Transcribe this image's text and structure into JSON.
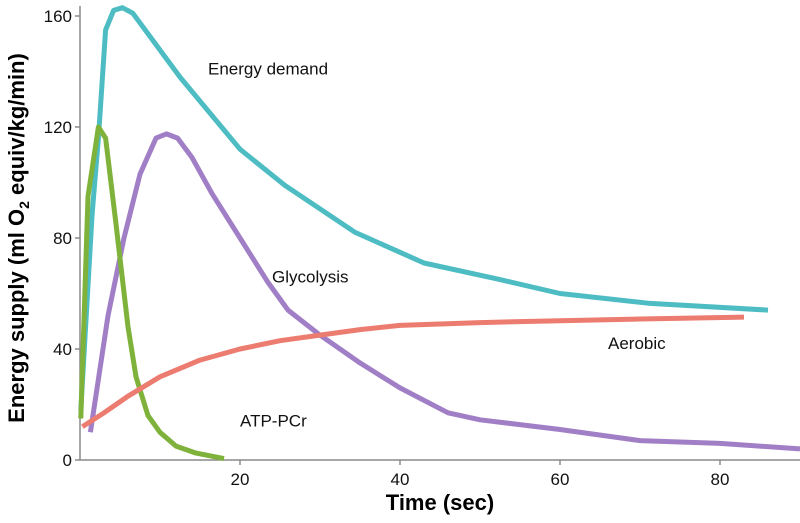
{
  "chart_data": {
    "type": "line",
    "title": "",
    "xlabel": "Time (sec)",
    "ylabel": "Energy supply (ml O2 equiv/kg/min)",
    "ylabel_parts": {
      "before": "Energy supply (ml O",
      "subscript": "2",
      "after": " equiv/kg/min)"
    },
    "xlim": [
      0,
      90
    ],
    "ylim": [
      0,
      165
    ],
    "xticks": [
      20,
      40,
      60,
      80
    ],
    "yticks": [
      0,
      40,
      80,
      120,
      160
    ],
    "grid": false,
    "legend": "none (inline labels)",
    "series": [
      {
        "name": "Energy demand",
        "color": "#4dbdc3",
        "label_at": [
          16,
          139
        ],
        "points": [
          [
            0.1,
            18
          ],
          [
            1.5,
            88
          ],
          [
            2.3,
            116
          ],
          [
            3.2,
            155
          ],
          [
            4.2,
            162
          ],
          [
            5.3,
            163
          ],
          [
            6.6,
            161
          ],
          [
            12.5,
            138
          ],
          [
            20,
            112
          ],
          [
            25.6,
            99
          ],
          [
            34.4,
            82
          ],
          [
            43,
            71
          ],
          [
            52.5,
            65
          ],
          [
            60,
            60
          ],
          [
            71,
            56.5
          ],
          [
            86,
            54
          ]
        ]
      },
      {
        "name": "Glycolysis",
        "color": "#a17fc6",
        "label_at": [
          24,
          64
        ],
        "points": [
          [
            1.3,
            10
          ],
          [
            3.5,
            52
          ],
          [
            5.5,
            80
          ],
          [
            7.5,
            103
          ],
          [
            9.5,
            116
          ],
          [
            10.8,
            117.5
          ],
          [
            12.2,
            116
          ],
          [
            14,
            109
          ],
          [
            16.5,
            96
          ],
          [
            20,
            80
          ],
          [
            23.5,
            64
          ],
          [
            26,
            54
          ],
          [
            30,
            45
          ],
          [
            35,
            35
          ],
          [
            40,
            26
          ],
          [
            46,
            17
          ],
          [
            50,
            14.5
          ],
          [
            60,
            11
          ],
          [
            70,
            7
          ],
          [
            80,
            6
          ],
          [
            90,
            4
          ]
        ]
      },
      {
        "name": "ATP-PCr",
        "color": "#7fb23a",
        "label_at": [
          20,
          12
        ],
        "points": [
          [
            0.1,
            15
          ],
          [
            1,
            95
          ],
          [
            2.3,
            120
          ],
          [
            3.2,
            116
          ],
          [
            4.5,
            85
          ],
          [
            6,
            48
          ],
          [
            7,
            30
          ],
          [
            8.5,
            16
          ],
          [
            10,
            10
          ],
          [
            12,
            5
          ],
          [
            14.5,
            2.5
          ],
          [
            18,
            0.5
          ]
        ]
      },
      {
        "name": "Aerobic",
        "color": "#ec7b70",
        "label_at": [
          66,
          40
        ],
        "points": [
          [
            0.3,
            12
          ],
          [
            3,
            17
          ],
          [
            6,
            23
          ],
          [
            10,
            30
          ],
          [
            15,
            36
          ],
          [
            20,
            40
          ],
          [
            25,
            43
          ],
          [
            30,
            45
          ],
          [
            35,
            47
          ],
          [
            40,
            48.5
          ],
          [
            50,
            49.5
          ],
          [
            60,
            50.2
          ],
          [
            70,
            50.8
          ],
          [
            83,
            51.5
          ]
        ]
      }
    ]
  }
}
